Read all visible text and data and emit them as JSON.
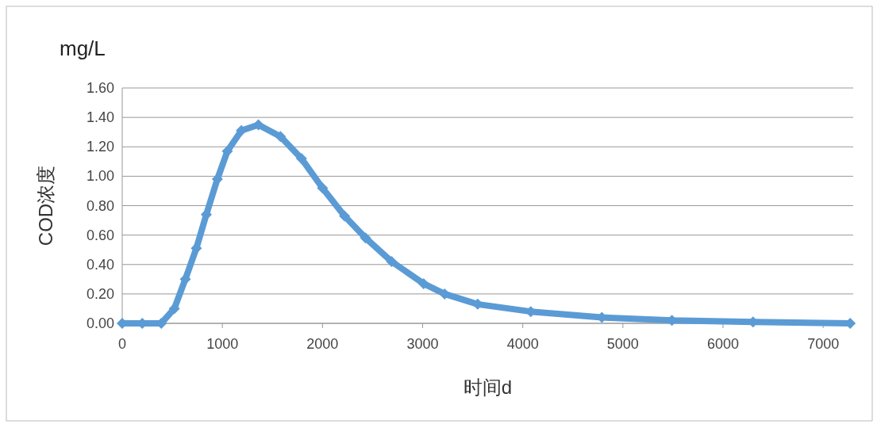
{
  "chart_data": {
    "type": "line",
    "xlabel": "时间d",
    "ylabel": "COD浓度",
    "annotations": [
      "mg/L"
    ],
    "marker": "diamond",
    "grid": "y",
    "xlim": [
      0,
      7300
    ],
    "xticks": [
      0,
      1000,
      2000,
      3000,
      4000,
      5000,
      6000,
      7000
    ],
    "ylim": [
      0,
      1.6
    ],
    "yticks": [
      {
        "value": 0,
        "label": "0.00"
      },
      {
        "value": 0.2,
        "label": "0.20"
      },
      {
        "value": 0.4,
        "label": "0.40"
      },
      {
        "value": 0.6,
        "label": "0.60"
      },
      {
        "value": 0.8,
        "label": "0.80"
      },
      {
        "value": 1.0,
        "label": "1.00"
      },
      {
        "value": 1.2,
        "label": "1.20"
      },
      {
        "value": 1.4,
        "label": "1.40"
      },
      {
        "value": 1.6,
        "label": "1.60"
      }
    ],
    "series": [
      {
        "color": "#5b9bd5",
        "x": [
          0,
          200,
          390,
          520,
          630,
          740,
          840,
          950,
          1050,
          1190,
          1360,
          1580,
          1790,
          2000,
          2220,
          2430,
          2690,
          3010,
          3220,
          3550,
          4080,
          4790,
          5490,
          6300,
          7270
        ],
        "values": [
          0,
          0,
          0,
          0.1,
          0.3,
          0.51,
          0.74,
          0.98,
          1.17,
          1.31,
          1.35,
          1.27,
          1.12,
          0.92,
          0.73,
          0.58,
          0.42,
          0.27,
          0.2,
          0.13,
          0.08,
          0.04,
          0.02,
          0.01,
          0
        ]
      }
    ]
  }
}
